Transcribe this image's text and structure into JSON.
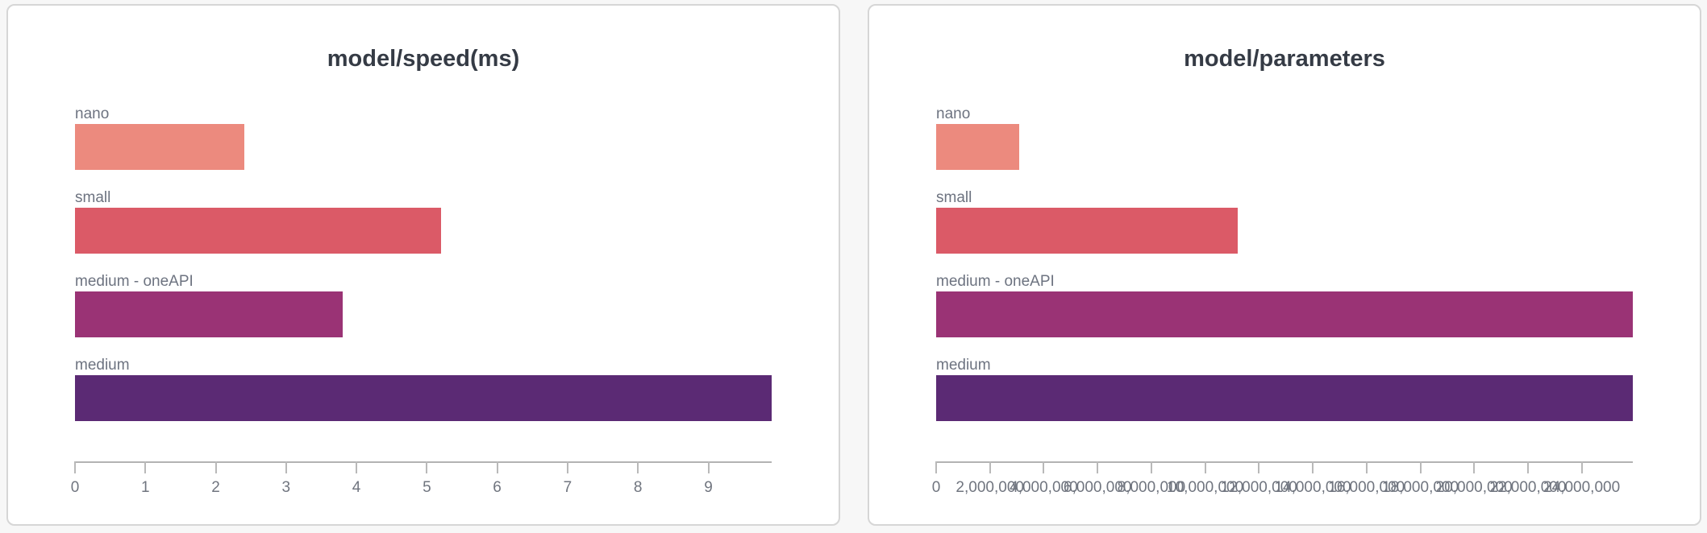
{
  "page": {
    "background_color": "#f7f7f7",
    "card_background_color": "#ffffff",
    "card_border_color": "#d6d6d6"
  },
  "chart_data": [
    {
      "type": "bar",
      "orientation": "horizontal",
      "title": "model/speed(ms)",
      "xlabel": "",
      "ylabel": "",
      "categories": [
        "nano",
        "small",
        "medium - oneAPI",
        "medium"
      ],
      "values": [
        2.4,
        5.2,
        3.8,
        9.9
      ],
      "bar_colors": [
        "#ec8a7e",
        "#db5a67",
        "#9a3375",
        "#5b2a74"
      ],
      "xlim": [
        0,
        9.9
      ],
      "tick_step": 1,
      "tick_labels": [
        "0",
        "1",
        "2",
        "3",
        "4",
        "5",
        "6",
        "7",
        "8",
        "9"
      ],
      "grid": false,
      "legend": false
    },
    {
      "type": "bar",
      "orientation": "horizontal",
      "title": "model/parameters",
      "xlabel": "",
      "ylabel": "",
      "categories": [
        "nano",
        "small",
        "medium - oneAPI",
        "medium"
      ],
      "values": [
        3100000,
        11200000,
        25900000,
        25900000
      ],
      "bar_colors": [
        "#ec8a7e",
        "#db5a67",
        "#9a3375",
        "#5b2a74"
      ],
      "xlim": [
        0,
        25900000
      ],
      "tick_step": 2000000,
      "tick_labels": [
        "0",
        "2,000,000",
        "4,000,000",
        "6,000,000",
        "8,000,000",
        "10,000,000",
        "12,000,000",
        "14,000,000",
        "16,000,000",
        "18,000,000",
        "20,000,000",
        "22,000,000",
        "24,000,000"
      ],
      "grid": false,
      "legend": false
    }
  ]
}
